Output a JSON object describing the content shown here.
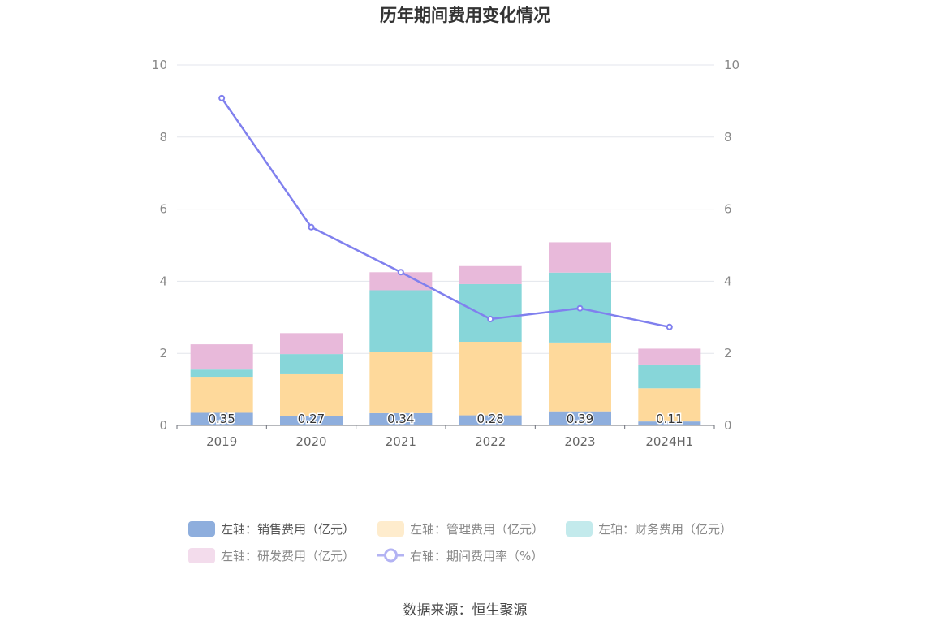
{
  "chart_data": {
    "type": "bar",
    "title": "历年期间费用变化情况",
    "categories": [
      "2019",
      "2020",
      "2021",
      "2022",
      "2023",
      "2024H1"
    ],
    "stacked": true,
    "series": [
      {
        "name": "左轴：销售费用（亿元）",
        "axis": "left",
        "color": "#8eaedd",
        "values": [
          0.35,
          0.27,
          0.34,
          0.28,
          0.39,
          0.11
        ],
        "labels": [
          "0.35",
          "0.27",
          "0.34",
          "0.28",
          "0.39",
          "0.11"
        ]
      },
      {
        "name": "左轴：管理费用（亿元）",
        "axis": "left",
        "color": "#fed99b",
        "values": [
          1.0,
          1.15,
          1.69,
          2.04,
          1.91,
          0.92
        ]
      },
      {
        "name": "左轴：财务费用（亿元）",
        "axis": "left",
        "color": "#87d6d9",
        "values": [
          0.2,
          0.56,
          1.72,
          1.6,
          1.94,
          0.66
        ]
      },
      {
        "name": "左轴：研发费用（亿元）",
        "axis": "left",
        "color": "#e8b9da",
        "values": [
          0.7,
          0.58,
          0.5,
          0.5,
          0.84,
          0.44
        ]
      },
      {
        "name": "右轴：期间费用率（%）",
        "axis": "right",
        "type": "line",
        "color": "#8080ee",
        "values": [
          9.08,
          5.5,
          4.25,
          2.95,
          3.25,
          2.73
        ]
      }
    ],
    "left_axis": {
      "min": 0,
      "max": 10,
      "ticks": [
        "0",
        "2",
        "4",
        "6",
        "8",
        "10"
      ]
    },
    "right_axis": {
      "min": 0,
      "max": 10,
      "ticks": [
        "0",
        "2",
        "4",
        "6",
        "8",
        "10"
      ]
    },
    "grid": true,
    "legend_position": "bottom"
  },
  "source": "数据来源：恒生聚源"
}
